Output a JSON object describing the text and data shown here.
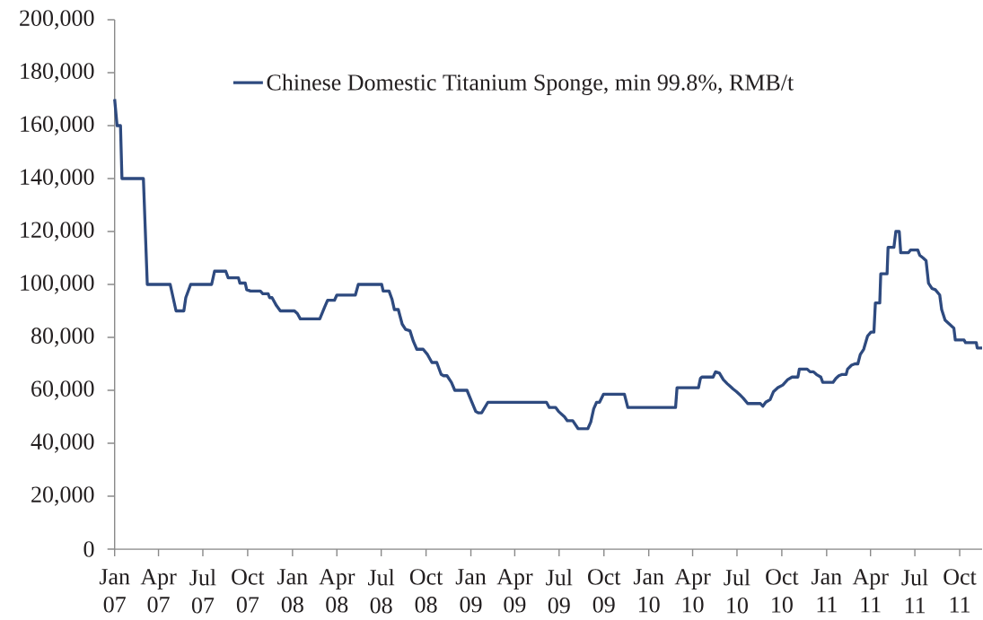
{
  "chart_data": {
    "type": "line",
    "x": [
      "2007-01-01",
      "2007-01-06",
      "2007-01-13",
      "2007-01-16",
      "2007-03-01",
      "2007-03-09",
      "2007-04-25",
      "2007-05-07",
      "2007-05-23",
      "2007-05-27",
      "2007-06-06",
      "2007-07-19",
      "2007-07-25",
      "2007-08-17",
      "2007-08-22",
      "2007-09-12",
      "2007-09-15",
      "2007-09-26",
      "2007-09-29",
      "2007-10-07",
      "2007-10-27",
      "2007-11-01",
      "2007-11-12",
      "2007-11-15",
      "2007-11-20",
      "2007-11-29",
      "2007-12-07",
      "2008-01-05",
      "2008-01-11",
      "2008-01-17",
      "2008-02-26",
      "2008-03-07",
      "2008-03-13",
      "2008-03-27",
      "2008-04-01",
      "2008-05-09",
      "2008-05-15",
      "2008-07-02",
      "2008-07-05",
      "2008-07-17",
      "2008-07-23",
      "2008-07-28",
      "2008-08-05",
      "2008-08-13",
      "2008-08-20",
      "2008-08-29",
      "2008-09-05",
      "2008-09-12",
      "2008-09-25",
      "2008-10-04",
      "2008-10-13",
      "2008-10-23",
      "2008-11-01",
      "2008-11-06",
      "2008-11-13",
      "2008-11-22",
      "2008-11-29",
      "2008-12-24",
      "2009-01-02",
      "2009-01-11",
      "2009-01-16",
      "2009-01-23",
      "2009-02-05",
      "2009-06-05",
      "2009-06-11",
      "2009-06-24",
      "2009-06-30",
      "2009-07-12",
      "2009-07-18",
      "2009-07-29",
      "2009-08-09",
      "2009-08-29",
      "2009-09-04",
      "2009-09-10",
      "2009-09-16",
      "2009-09-22",
      "2009-09-30",
      "2009-11-12",
      "2009-11-19",
      "2010-02-25",
      "2010-02-28",
      "2010-04-13",
      "2010-04-17",
      "2010-04-20",
      "2010-05-13",
      "2010-05-18",
      "2010-05-26",
      "2010-06-03",
      "2010-06-11",
      "2010-06-17",
      "2010-06-23",
      "2010-06-30",
      "2010-07-06",
      "2010-07-14",
      "2010-07-23",
      "2010-08-18",
      "2010-08-23",
      "2010-08-29",
      "2010-09-07",
      "2010-09-14",
      "2010-09-23",
      "2010-10-03",
      "2010-10-13",
      "2010-10-22",
      "2010-11-03",
      "2010-11-06",
      "2010-11-22",
      "2010-11-28",
      "2010-12-05",
      "2010-12-11",
      "2010-12-20",
      "2010-12-24",
      "2011-01-14",
      "2011-01-20",
      "2011-01-26",
      "2011-02-02",
      "2011-02-10",
      "2011-02-13",
      "2011-02-21",
      "2011-02-28",
      "2011-03-06",
      "2011-03-11",
      "2011-03-18",
      "2011-03-26",
      "2011-04-02",
      "2011-04-08",
      "2011-04-11",
      "2011-04-20",
      "2011-04-22",
      "2011-05-05",
      "2011-05-07",
      "2011-05-19",
      "2011-05-23",
      "2011-05-30",
      "2011-06-02",
      "2011-06-18",
      "2011-06-22",
      "2011-07-07",
      "2011-07-11",
      "2011-07-18",
      "2011-07-24",
      "2011-07-29",
      "2011-08-05",
      "2011-08-12",
      "2011-08-21",
      "2011-08-25",
      "2011-09-01",
      "2011-09-07",
      "2011-09-19",
      "2011-09-22",
      "2011-10-10",
      "2011-10-13",
      "2011-11-04",
      "2011-11-06",
      "2011-11-16"
    ],
    "series": [
      {
        "name": "Chinese Domestic Titanium Sponge, min 99.8%, RMB/t",
        "color": "#2e4a7f",
        "values": [
          170000,
          160000,
          160000,
          140000,
          140000,
          100000,
          100000,
          90000,
          90000,
          95000,
          100000,
          100000,
          105000,
          105000,
          102500,
          102500,
          100500,
          100500,
          98000,
          97500,
          97500,
          96500,
          96500,
          95000,
          95000,
          92000,
          90000,
          90000,
          89000,
          87000,
          87000,
          91500,
          94000,
          94000,
          96000,
          96000,
          100000,
          100000,
          97500,
          97500,
          94500,
          90500,
          90500,
          85000,
          83000,
          82500,
          78500,
          75500,
          75500,
          73500,
          70500,
          70500,
          66000,
          65500,
          65500,
          63000,
          60000,
          60000,
          56000,
          52000,
          51500,
          51500,
          55500,
          55500,
          53500,
          53500,
          52000,
          50000,
          48500,
          48500,
          45500,
          45500,
          48000,
          53000,
          55500,
          55500,
          58500,
          58500,
          53500,
          53500,
          61000,
          61000,
          64500,
          65000,
          65000,
          67000,
          66500,
          64000,
          62500,
          61500,
          60500,
          59500,
          58500,
          57000,
          55000,
          55000,
          54000,
          55500,
          56500,
          59500,
          61000,
          62000,
          64000,
          65000,
          65000,
          68000,
          68000,
          67000,
          67000,
          66000,
          65000,
          63000,
          63000,
          64500,
          65500,
          66000,
          66000,
          68000,
          69500,
          70000,
          70000,
          73500,
          75500,
          80500,
          82000,
          82000,
          93000,
          93000,
          104000,
          104000,
          114000,
          114000,
          120000,
          120000,
          112000,
          112000,
          113000,
          113000,
          111000,
          110000,
          109000,
          100500,
          98500,
          98000,
          96000,
          90500,
          86500,
          85500,
          83500,
          79000,
          79000,
          78000,
          78000,
          76000,
          76000
        ]
      }
    ],
    "xlim": [
      "2007-01-01",
      "2011-11-16"
    ],
    "xticks": [
      {
        "value": "2007-01-01",
        "label": "Jan 07"
      },
      {
        "value": "2007-04-01",
        "label": "Apr 07"
      },
      {
        "value": "2007-07-01",
        "label": "Jul 07"
      },
      {
        "value": "2007-10-01",
        "label": "Oct 07"
      },
      {
        "value": "2008-01-01",
        "label": "Jan 08"
      },
      {
        "value": "2008-04-01",
        "label": "Apr 08"
      },
      {
        "value": "2008-07-01",
        "label": "Jul 08"
      },
      {
        "value": "2008-10-01",
        "label": "Oct 08"
      },
      {
        "value": "2009-01-01",
        "label": "Jan 09"
      },
      {
        "value": "2009-04-01",
        "label": "Apr 09"
      },
      {
        "value": "2009-07-01",
        "label": "Jul 09"
      },
      {
        "value": "2009-10-01",
        "label": "Oct 09"
      },
      {
        "value": "2010-01-01",
        "label": "Jan 10"
      },
      {
        "value": "2010-04-01",
        "label": "Apr 10"
      },
      {
        "value": "2010-07-01",
        "label": "Jul 10"
      },
      {
        "value": "2010-10-01",
        "label": "Oct 10"
      },
      {
        "value": "2011-01-01",
        "label": "Jan 11"
      },
      {
        "value": "2011-04-01",
        "label": "Apr 11"
      },
      {
        "value": "2011-07-01",
        "label": "Jul 11"
      },
      {
        "value": "2011-10-01",
        "label": "Oct 11"
      }
    ],
    "ylim": [
      0,
      200000
    ],
    "yticks": [
      0,
      {
        "value": 20000,
        "label": "20,000"
      },
      {
        "value": 40000,
        "label": "40,000"
      },
      {
        "value": 60000,
        "label": "60,000"
      },
      {
        "value": 80000,
        "label": "80,000"
      },
      {
        "value": 100000,
        "label": "100,000"
      },
      {
        "value": 120000,
        "label": "120,000"
      },
      {
        "value": 140000,
        "label": "140,000"
      },
      {
        "value": 160000,
        "label": "160,000"
      },
      {
        "value": 180000,
        "label": "180,000"
      },
      {
        "value": 200000,
        "label": "200,000"
      }
    ],
    "legend": "top"
  }
}
